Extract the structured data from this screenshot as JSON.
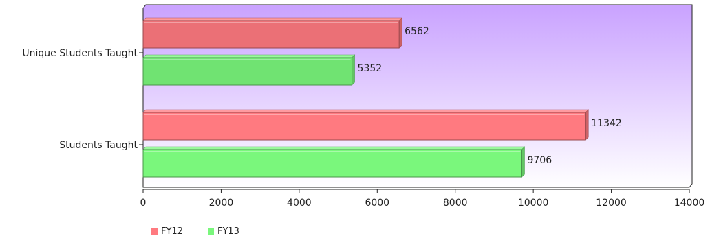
{
  "chart_data": {
    "type": "bar",
    "orientation": "horizontal",
    "categories": [
      "Unique Students Taught",
      "Students Taught"
    ],
    "series": [
      {
        "name": "FY12",
        "values": [
          6562,
          11342
        ],
        "color": "#ff7a80"
      },
      {
        "name": "FY13",
        "values": [
          5352,
          9706
        ],
        "color": "#7af77c"
      }
    ],
    "xlim": [
      0,
      14000
    ],
    "xticks": [
      "0",
      "2000",
      "4000",
      "6000",
      "8000",
      "10000",
      "12000",
      "14000"
    ],
    "legend_position": "bottom-left",
    "grid": false,
    "background_gradient": [
      "#c9a2ff",
      "#ffffff"
    ]
  }
}
